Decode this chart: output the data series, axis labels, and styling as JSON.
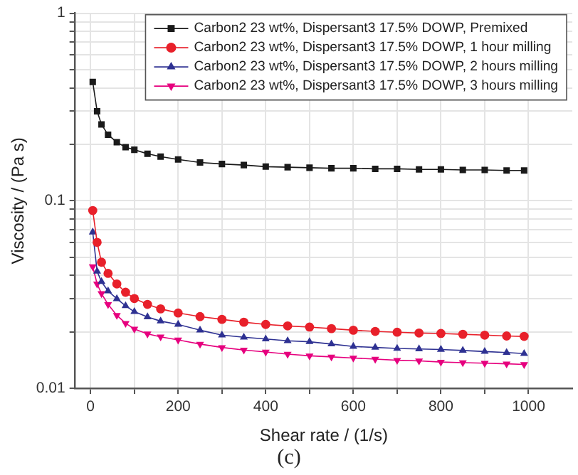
{
  "chart_data": {
    "type": "line",
    "xlabel": "Shear rate / (1/s)",
    "ylabel": "Viscosity / (Pa s)",
    "annotations": [
      "(c)"
    ],
    "x": [
      5,
      15,
      25,
      40,
      60,
      80,
      100,
      130,
      160,
      200,
      250,
      300,
      350,
      400,
      450,
      500,
      550,
      600,
      650,
      700,
      750,
      800,
      850,
      900,
      950,
      990
    ],
    "series": [
      {
        "name": "Carbon2 23 wt%, Dispersant3 17.5% DOWP, Premixed",
        "color": "#1a1a1a",
        "marker": "square",
        "values": [
          0.43,
          0.3,
          0.255,
          0.225,
          0.205,
          0.193,
          0.187,
          0.178,
          0.172,
          0.166,
          0.16,
          0.157,
          0.155,
          0.152,
          0.151,
          0.15,
          0.149,
          0.149,
          0.148,
          0.148,
          0.147,
          0.147,
          0.146,
          0.146,
          0.145,
          0.145
        ]
      },
      {
        "name": "Carbon2 23 wt%, Dispersant3 17.5% DOWP, 1 hour milling",
        "color": "#e8202a",
        "marker": "circle",
        "values": [
          0.0887,
          0.06,
          0.047,
          0.041,
          0.036,
          0.0325,
          0.0301,
          0.028,
          0.0265,
          0.0252,
          0.0241,
          0.0233,
          0.0225,
          0.0219,
          0.0215,
          0.0212,
          0.0208,
          0.0204,
          0.0201,
          0.0199,
          0.0197,
          0.0196,
          0.0194,
          0.0192,
          0.019,
          0.0189
        ]
      },
      {
        "name": "Carbon2 23 wt%, Dispersant3 17.5% DOWP, 2 hours milling",
        "color": "#2e3192",
        "marker": "triangle",
        "values": [
          0.068,
          0.042,
          0.037,
          0.033,
          0.03,
          0.0275,
          0.0256,
          0.024,
          0.0228,
          0.0219,
          0.0204,
          0.0192,
          0.0187,
          0.0183,
          0.0179,
          0.0177,
          0.0172,
          0.0167,
          0.0165,
          0.0163,
          0.0162,
          0.0161,
          0.0159,
          0.0157,
          0.0155,
          0.0153
        ]
      },
      {
        "name": "Carbon2 23 wt%, Dispersant3 17.5% DOWP, 3 hours milling",
        "color": "#e6007e",
        "marker": "triangle-down",
        "values": [
          0.0445,
          0.036,
          0.032,
          0.028,
          0.0245,
          0.0222,
          0.0207,
          0.0195,
          0.0188,
          0.0181,
          0.0172,
          0.0165,
          0.016,
          0.0156,
          0.0152,
          0.0149,
          0.0147,
          0.0145,
          0.0143,
          0.0141,
          0.014,
          0.0138,
          0.0137,
          0.0136,
          0.0135,
          0.0134
        ]
      }
    ],
    "log": "y",
    "xlim": [
      -35,
      1100
    ],
    "ylim": [
      0.01,
      1
    ],
    "xticks": [
      0,
      {
        "value": 100,
        "label": null
      },
      200,
      {
        "value": 300,
        "label": null
      },
      400,
      {
        "value": 500,
        "label": null
      },
      600,
      {
        "value": 700,
        "label": null
      },
      800,
      {
        "value": 900,
        "label": null
      },
      1000
    ],
    "yticks": [
      0.01,
      {
        "value": 0.02,
        "label": null
      },
      {
        "value": 0.03,
        "label": null
      },
      {
        "value": 0.04,
        "label": null
      },
      {
        "value": 0.05,
        "label": null
      },
      {
        "value": 0.06,
        "label": null
      },
      {
        "value": 0.07,
        "label": null
      },
      {
        "value": 0.08,
        "label": null
      },
      {
        "value": 0.09,
        "label": null
      },
      0.1,
      {
        "value": 0.2,
        "label": null
      },
      {
        "value": 0.3,
        "label": null
      },
      {
        "value": 0.4,
        "label": null
      },
      {
        "value": 0.5,
        "label": null
      },
      {
        "value": 0.6,
        "label": null
      },
      {
        "value": 0.7,
        "label": null
      },
      {
        "value": 0.8,
        "label": null
      },
      {
        "value": 0.9,
        "label": null
      },
      1
    ],
    "grid": true,
    "legend": "top right",
    "line_style": "solid"
  }
}
